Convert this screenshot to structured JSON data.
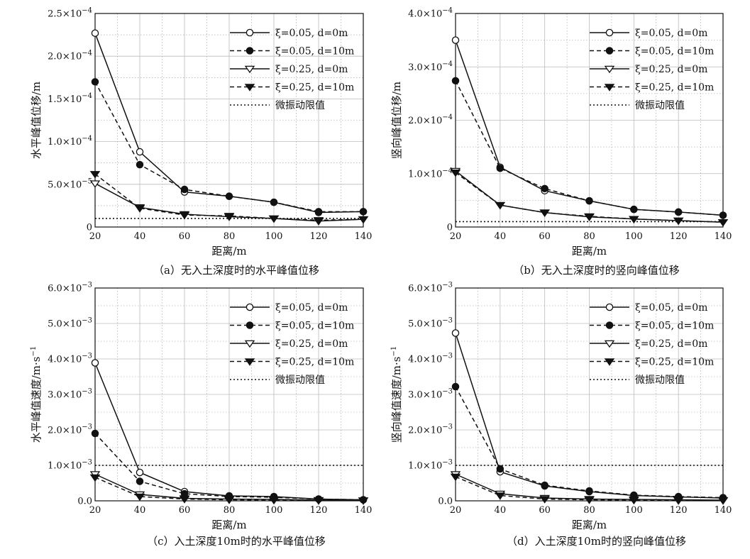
{
  "chart_data": [
    {
      "type": "line",
      "caption": "（a）无入土深度时的水平峰值位移",
      "xlabel": "距离/m",
      "ylabel": "水平峰值位移/m",
      "x": [
        20,
        40,
        60,
        80,
        100,
        120,
        140
      ],
      "xlim": [
        20,
        140
      ],
      "xticks": [
        "20",
        "40",
        "60",
        "80",
        "100",
        "120",
        "140"
      ],
      "ylim": [
        0,
        0.00025
      ],
      "yticks": [
        0,
        5e-05,
        0.0001,
        0.00015,
        0.0002,
        0.00025
      ],
      "ytick_labels": [
        {
          "mantissa": "0",
          "exp": ""
        },
        {
          "mantissa": "5.0×10",
          "exp": "−5"
        },
        {
          "mantissa": "1.0×10",
          "exp": "−4"
        },
        {
          "mantissa": "1.5×10",
          "exp": "−4"
        },
        {
          "mantissa": "2.0×10",
          "exp": "−4"
        },
        {
          "mantissa": "2.5×10",
          "exp": "−4"
        }
      ],
      "grid": true,
      "legend_position": "top-right",
      "series": [
        {
          "name": "ξ=0.05, d=0m",
          "values": [
            0.000227,
            8.8e-05,
            4.1e-05,
            3.6e-05,
            2.9e-05,
            1.7e-05,
            1.8e-05
          ],
          "marker": "circle-open",
          "dash": "solid"
        },
        {
          "name": "ξ=0.05, d=10m",
          "values": [
            0.00017,
            7.3e-05,
            4.4e-05,
            3.6e-05,
            2.9e-05,
            1.8e-05,
            1.8e-05
          ],
          "marker": "circle-filled",
          "dash": "dashed"
        },
        {
          "name": "ξ=0.25, d=0m",
          "values": [
            5.1e-05,
            2.3e-05,
            1.5e-05,
            1.2e-05,
            1e-05,
            7e-06,
            9e-06
          ],
          "marker": "triangle-open",
          "dash": "solid"
        },
        {
          "name": "ξ=0.25, d=10m",
          "values": [
            6.2e-05,
            2.2e-05,
            1.4e-05,
            1.3e-05,
            1e-05,
            8e-06,
            9e-06
          ],
          "marker": "triangle-filled",
          "dash": "dashed"
        },
        {
          "name": "微振动限值",
          "values": [
            1e-05,
            1e-05,
            1e-05,
            1e-05,
            1e-05,
            1e-05,
            1e-05
          ],
          "marker": "none",
          "dash": "dotted"
        }
      ]
    },
    {
      "type": "line",
      "caption": "（b）无入土深度时的竖向峰值位移",
      "xlabel": "距离/m",
      "ylabel": "竖向峰值位移/m",
      "x": [
        20,
        40,
        60,
        80,
        100,
        120,
        140
      ],
      "xlim": [
        20,
        140
      ],
      "xticks": [
        "20",
        "40",
        "60",
        "80",
        "100",
        "120",
        "140"
      ],
      "ylim": [
        0,
        0.0004
      ],
      "yticks": [
        0,
        0.0001,
        0.0002,
        0.0003,
        0.0004
      ],
      "ytick_labels": [
        {
          "mantissa": "0",
          "exp": ""
        },
        {
          "mantissa": "1.0×10",
          "exp": "−4"
        },
        {
          "mantissa": "2.0×10",
          "exp": "−4"
        },
        {
          "mantissa": "3.0×10",
          "exp": "−4"
        },
        {
          "mantissa": "4.0×10",
          "exp": "−4"
        }
      ],
      "grid": true,
      "legend_position": "top-right",
      "series": [
        {
          "name": "ξ=0.05, d=0m",
          "values": [
            0.00035,
            0.000112,
            6.8e-05,
            4.9e-05,
            3.3e-05,
            2.8e-05,
            2.2e-05
          ],
          "marker": "circle-open",
          "dash": "solid"
        },
        {
          "name": "ξ=0.05, d=10m",
          "values": [
            0.000274,
            0.00011,
            7.2e-05,
            4.9e-05,
            3.3e-05,
            2.8e-05,
            2.2e-05
          ],
          "marker": "circle-filled",
          "dash": "dashed"
        },
        {
          "name": "ξ=0.25, d=0m",
          "values": [
            0.000105,
            4.1e-05,
            2.7e-05,
            1.9e-05,
            1.5e-05,
            1.2e-05,
            9e-06
          ],
          "marker": "triangle-open",
          "dash": "solid"
        },
        {
          "name": "ξ=0.25, d=10m",
          "values": [
            0.000102,
            4.1e-05,
            2.7e-05,
            2e-05,
            1.5e-05,
            1.2e-05,
            9e-06
          ],
          "marker": "triangle-filled",
          "dash": "dashed"
        },
        {
          "name": "微振动限值",
          "values": [
            1e-05,
            1e-05,
            1e-05,
            1e-05,
            1e-05,
            1e-05,
            1e-05
          ],
          "marker": "none",
          "dash": "dotted"
        }
      ]
    },
    {
      "type": "line",
      "caption": "（c）入土深度10m时的水平峰值位移",
      "xlabel": "距离/m",
      "ylabel": "水平峰值速度/m·s",
      "ylabel_sup": "−1",
      "x": [
        20,
        40,
        60,
        80,
        100,
        120,
        140
      ],
      "xlim": [
        20,
        140
      ],
      "xticks": [
        "20",
        "40",
        "60",
        "80",
        "100",
        "120",
        "140"
      ],
      "ylim": [
        0,
        0.006
      ],
      "yticks": [
        0,
        0.001,
        0.002,
        0.003,
        0.004,
        0.005,
        0.006
      ],
      "ytick_labels": [
        {
          "mantissa": "0.0",
          "exp": ""
        },
        {
          "mantissa": "1.0×10",
          "exp": "−3"
        },
        {
          "mantissa": "2.0×10",
          "exp": "−3"
        },
        {
          "mantissa": "3.0×10",
          "exp": "−3"
        },
        {
          "mantissa": "4.0×10",
          "exp": "−3"
        },
        {
          "mantissa": "5.0×10",
          "exp": "−3"
        },
        {
          "mantissa": "6.0×10",
          "exp": "−3"
        }
      ],
      "grid": true,
      "legend_position": "top-right",
      "series": [
        {
          "name": "ξ=0.05, d=0m",
          "values": [
            0.00389,
            0.0008,
            0.00026,
            0.00014,
            0.00012,
            5e-05,
            3e-05
          ],
          "marker": "circle-open",
          "dash": "solid"
        },
        {
          "name": "ξ=0.05, d=10m",
          "values": [
            0.0019,
            0.00055,
            0.0002,
            0.00012,
            0.0001,
            5e-05,
            3e-05
          ],
          "marker": "circle-filled",
          "dash": "dashed"
        },
        {
          "name": "ξ=0.25, d=0m",
          "values": [
            0.00075,
            0.00018,
            7e-05,
            5e-05,
            4e-05,
            2e-05,
            1e-05
          ],
          "marker": "triangle-open",
          "dash": "solid"
        },
        {
          "name": "ξ=0.25, d=10m",
          "values": [
            0.00066,
            0.00012,
            5e-05,
            3e-05,
            2e-05,
            1e-05,
            1e-05
          ],
          "marker": "triangle-filled",
          "dash": "dashed"
        },
        {
          "name": "微振动限值",
          "values": [
            0.001,
            0.001,
            0.001,
            0.001,
            0.001,
            0.001,
            0.001
          ],
          "marker": "none",
          "dash": "dotted"
        }
      ]
    },
    {
      "type": "line",
      "caption": "（d）入土深度10m时的竖向峰值位移",
      "xlabel": "距离/m",
      "ylabel": "竖向峰值速度/m·s",
      "ylabel_sup": "−1",
      "x": [
        20,
        40,
        60,
        80,
        100,
        120,
        140
      ],
      "xlim": [
        20,
        140
      ],
      "xticks": [
        "20",
        "40",
        "60",
        "80",
        "100",
        "120",
        "140"
      ],
      "ylim": [
        0,
        0.006
      ],
      "yticks": [
        0,
        0.001,
        0.002,
        0.003,
        0.004,
        0.005,
        0.006
      ],
      "ytick_labels": [
        {
          "mantissa": "0.0",
          "exp": ""
        },
        {
          "mantissa": "1.0×10",
          "exp": "−3"
        },
        {
          "mantissa": "2.0×10",
          "exp": "−3"
        },
        {
          "mantissa": "3.0×10",
          "exp": "−3"
        },
        {
          "mantissa": "4.0×10",
          "exp": "−3"
        },
        {
          "mantissa": "5.0×10",
          "exp": "−3"
        },
        {
          "mantissa": "6.0×10",
          "exp": "−3"
        }
      ],
      "grid": true,
      "legend_position": "top-right",
      "series": [
        {
          "name": "ξ=0.05, d=0m",
          "values": [
            0.00473,
            0.00082,
            0.00042,
            0.00026,
            0.00015,
            0.00011,
            8e-05
          ],
          "marker": "circle-open",
          "dash": "solid"
        },
        {
          "name": "ξ=0.05, d=10m",
          "values": [
            0.00322,
            0.0009,
            0.00044,
            0.00028,
            0.00016,
            0.00012,
            9e-05
          ],
          "marker": "circle-filled",
          "dash": "dashed"
        },
        {
          "name": "ξ=0.25, d=0m",
          "values": [
            0.00075,
            0.0002,
            8e-05,
            5e-05,
            4e-05,
            3e-05,
            2e-05
          ],
          "marker": "triangle-open",
          "dash": "solid"
        },
        {
          "name": "ξ=0.25, d=10m",
          "values": [
            0.00068,
            0.00015,
            5e-05,
            3e-05,
            2e-05,
            1e-05,
            1e-05
          ],
          "marker": "triangle-filled",
          "dash": "dashed"
        },
        {
          "name": "微振动限值",
          "values": [
            0.001,
            0.001,
            0.001,
            0.001,
            0.001,
            0.001,
            0.001
          ],
          "marker": "none",
          "dash": "dotted"
        }
      ]
    }
  ]
}
